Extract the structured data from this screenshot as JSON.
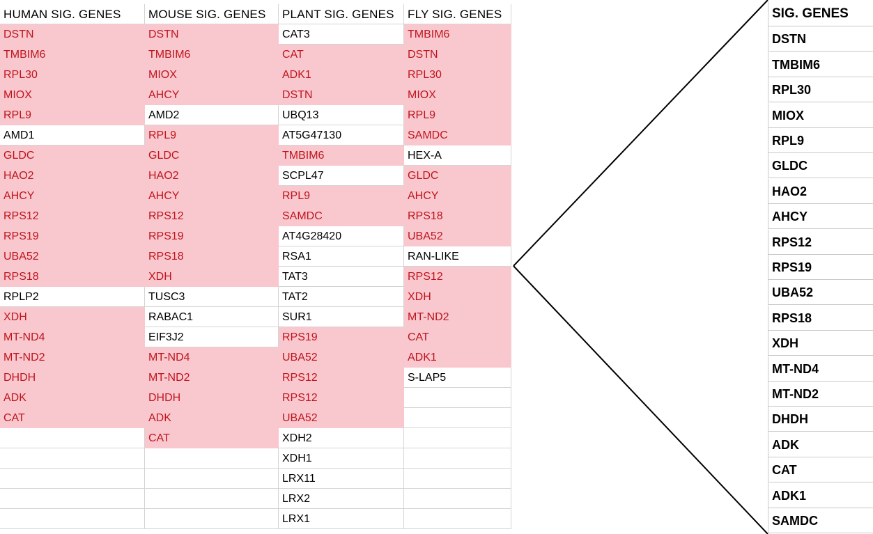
{
  "sheet": {
    "headers": [
      "HUMAN SIG. GENES",
      "MOUSE SIG. GENES",
      "PLANT SIG. GENES",
      "FLY SIG. GENES"
    ],
    "columns": [
      {
        "cells": [
          {
            "text": "DSTN",
            "hl": true
          },
          {
            "text": "TMBIM6",
            "hl": true
          },
          {
            "text": "RPL30",
            "hl": true
          },
          {
            "text": "MIOX",
            "hl": true
          },
          {
            "text": "RPL9",
            "hl": true
          },
          {
            "text": "AMD1",
            "hl": false
          },
          {
            "text": "GLDC",
            "hl": true
          },
          {
            "text": "HAO2",
            "hl": true
          },
          {
            "text": "AHCY",
            "hl": true
          },
          {
            "text": "RPS12",
            "hl": true
          },
          {
            "text": "RPS19",
            "hl": true
          },
          {
            "text": "UBA52",
            "hl": true
          },
          {
            "text": "RPS18",
            "hl": true
          },
          {
            "text": "RPLP2",
            "hl": false
          },
          {
            "text": "XDH",
            "hl": true
          },
          {
            "text": "MT-ND4",
            "hl": true
          },
          {
            "text": "MT-ND2",
            "hl": true
          },
          {
            "text": "DHDH",
            "hl": true
          },
          {
            "text": "ADK",
            "hl": true
          },
          {
            "text": "CAT",
            "hl": true
          },
          {
            "text": "",
            "hl": false
          },
          {
            "text": "",
            "hl": false
          },
          {
            "text": "",
            "hl": false
          },
          {
            "text": "",
            "hl": false
          },
          {
            "text": "",
            "hl": false
          }
        ]
      },
      {
        "cells": [
          {
            "text": "DSTN",
            "hl": true
          },
          {
            "text": "TMBIM6",
            "hl": true
          },
          {
            "text": "MIOX",
            "hl": true
          },
          {
            "text": "AHCY",
            "hl": true
          },
          {
            "text": "AMD2",
            "hl": false
          },
          {
            "text": "RPL9",
            "hl": true
          },
          {
            "text": "GLDC",
            "hl": true
          },
          {
            "text": "HAO2",
            "hl": true
          },
          {
            "text": "AHCY",
            "hl": true
          },
          {
            "text": "RPS12",
            "hl": true
          },
          {
            "text": "RPS19",
            "hl": true
          },
          {
            "text": "RPS18",
            "hl": true
          },
          {
            "text": "XDH",
            "hl": true
          },
          {
            "text": "TUSC3",
            "hl": false
          },
          {
            "text": "RABAC1",
            "hl": false
          },
          {
            "text": "EIF3J2",
            "hl": false
          },
          {
            "text": "MT-ND4",
            "hl": true
          },
          {
            "text": "MT-ND2",
            "hl": true
          },
          {
            "text": "DHDH",
            "hl": true
          },
          {
            "text": "ADK",
            "hl": true
          },
          {
            "text": "CAT",
            "hl": true
          },
          {
            "text": "",
            "hl": false
          },
          {
            "text": "",
            "hl": false
          },
          {
            "text": "",
            "hl": false
          },
          {
            "text": "",
            "hl": false
          }
        ]
      },
      {
        "cells": [
          {
            "text": "CAT3",
            "hl": false
          },
          {
            "text": "CAT",
            "hl": true
          },
          {
            "text": "ADK1",
            "hl": true
          },
          {
            "text": "DSTN",
            "hl": true
          },
          {
            "text": "UBQ13",
            "hl": false
          },
          {
            "text": "AT5G47130",
            "hl": false
          },
          {
            "text": "TMBIM6",
            "hl": true
          },
          {
            "text": "SCPL47",
            "hl": false
          },
          {
            "text": "RPL9",
            "hl": true
          },
          {
            "text": "SAMDC",
            "hl": true
          },
          {
            "text": "AT4G28420",
            "hl": false
          },
          {
            "text": "RSA1",
            "hl": false
          },
          {
            "text": "TAT3",
            "hl": false
          },
          {
            "text": "TAT2",
            "hl": false
          },
          {
            "text": "SUR1",
            "hl": false
          },
          {
            "text": "RPS19",
            "hl": true
          },
          {
            "text": "UBA52",
            "hl": true
          },
          {
            "text": "RPS12",
            "hl": true
          },
          {
            "text": "RPS12",
            "hl": true
          },
          {
            "text": "UBA52",
            "hl": true
          },
          {
            "text": "XDH2",
            "hl": false
          },
          {
            "text": "XDH1",
            "hl": false
          },
          {
            "text": "LRX11",
            "hl": false
          },
          {
            "text": "LRX2",
            "hl": false
          },
          {
            "text": "LRX1",
            "hl": false
          }
        ]
      },
      {
        "cells": [
          {
            "text": "TMBIM6",
            "hl": true
          },
          {
            "text": "DSTN",
            "hl": true
          },
          {
            "text": "RPL30",
            "hl": true
          },
          {
            "text": "MIOX",
            "hl": true
          },
          {
            "text": "RPL9",
            "hl": true
          },
          {
            "text": "SAMDC",
            "hl": true
          },
          {
            "text": "HEX-A",
            "hl": false
          },
          {
            "text": "GLDC",
            "hl": true
          },
          {
            "text": "AHCY",
            "hl": true
          },
          {
            "text": "RPS18",
            "hl": true
          },
          {
            "text": "UBA52",
            "hl": true
          },
          {
            "text": "RAN-LIKE",
            "hl": false
          },
          {
            "text": "RPS12",
            "hl": true
          },
          {
            "text": "XDH",
            "hl": true
          },
          {
            "text": "MT-ND2",
            "hl": true
          },
          {
            "text": "CAT",
            "hl": true
          },
          {
            "text": "ADK1",
            "hl": true
          },
          {
            "text": "S-LAP5",
            "hl": false
          },
          {
            "text": "",
            "hl": false
          },
          {
            "text": "",
            "hl": false
          },
          {
            "text": "",
            "hl": false
          },
          {
            "text": "",
            "hl": false
          },
          {
            "text": "",
            "hl": false
          },
          {
            "text": "",
            "hl": false
          },
          {
            "text": "",
            "hl": false
          }
        ]
      }
    ]
  },
  "sig_panel": {
    "header": "SIG. GENES",
    "items": [
      "DSTN",
      "TMBIM6",
      "RPL30",
      "MIOX",
      "RPL9",
      "GLDC",
      "HAO2",
      "AHCY",
      "RPS12",
      "RPS19",
      "UBA52",
      "RPS18",
      "XDH",
      "MT-ND4",
      "MT-ND2",
      "DHDH",
      "ADK",
      "CAT",
      "ADK1",
      "SAMDC"
    ]
  },
  "colors": {
    "highlight_bg": "#f9c8cf",
    "highlight_text": "#c0141c",
    "gridline": "#d4d4d4"
  }
}
